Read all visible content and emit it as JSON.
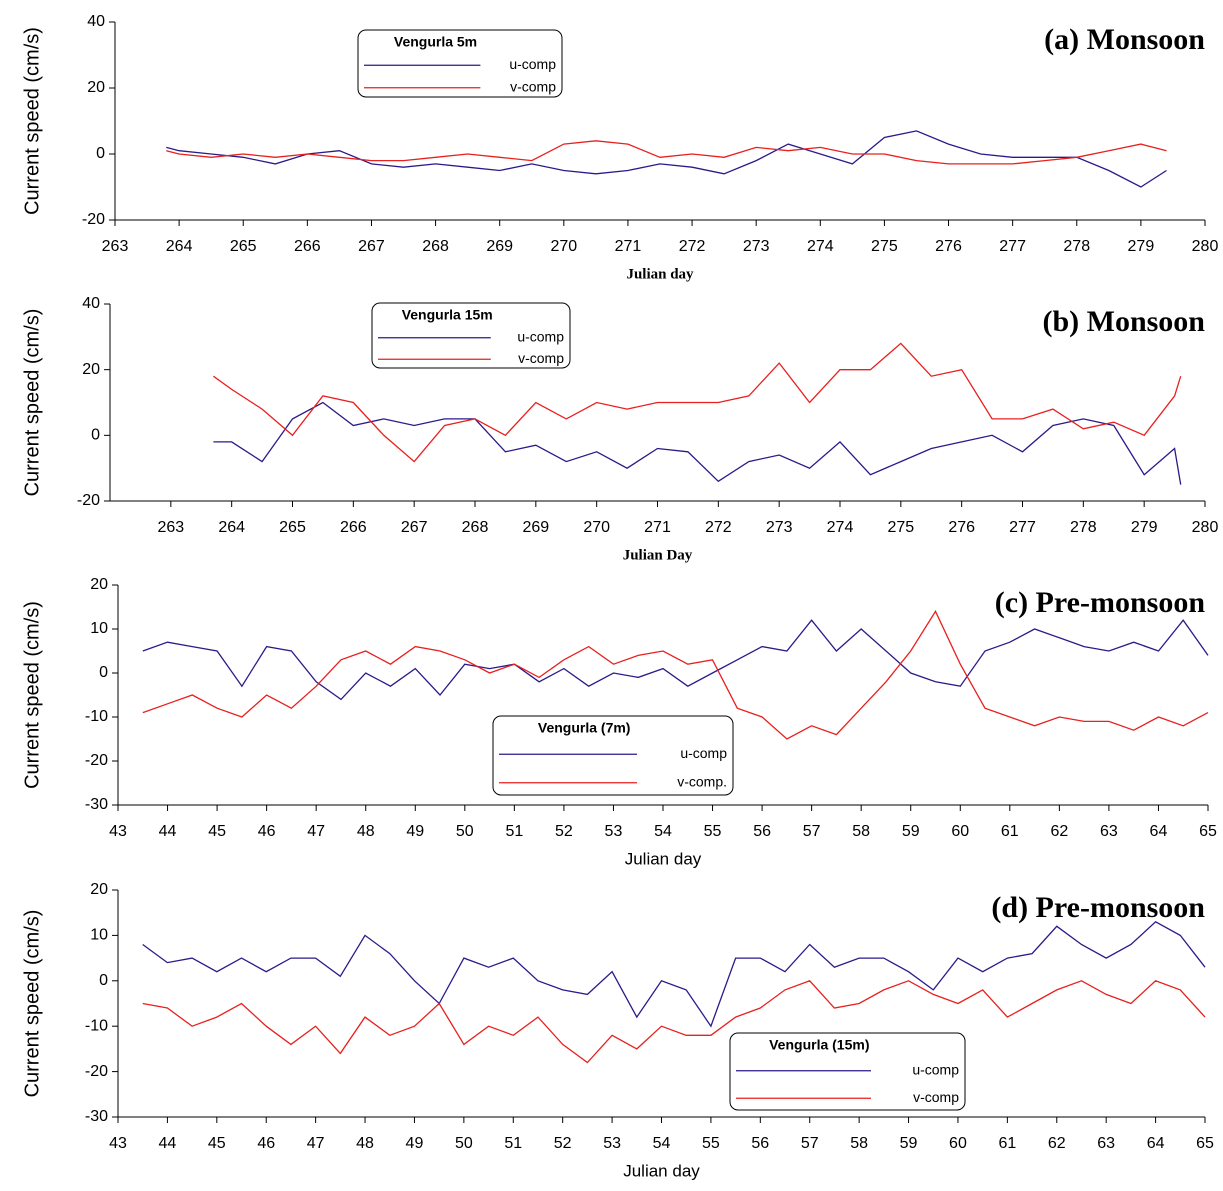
{
  "chart_data": [
    {
      "type": "line",
      "title": "(a) Monsoon",
      "xlabel": "Julian day",
      "ylabel": "Current speed (cm/s)",
      "legend_title": "Vengurla 5m",
      "xlim": [
        263,
        280
      ],
      "ylim": [
        -20,
        40
      ],
      "xticks": [
        263,
        264,
        265,
        266,
        267,
        268,
        269,
        270,
        271,
        272,
        273,
        274,
        275,
        276,
        277,
        278,
        279,
        280
      ],
      "yticks": [
        -20,
        0,
        20,
        40
      ],
      "x": [
        263.8,
        264,
        264.5,
        265,
        265.5,
        266,
        266.5,
        267,
        267.5,
        268,
        268.5,
        269,
        269.5,
        270,
        270.5,
        271,
        271.5,
        272,
        272.5,
        273,
        273.5,
        274,
        274.5,
        275,
        275.5,
        276,
        276.5,
        277,
        277.5,
        278,
        278.5,
        279,
        279.4
      ],
      "series": [
        {
          "name": "u-comp",
          "color": "#2b1a8a",
          "values": [
            2,
            1,
            0,
            -1,
            -3,
            0,
            1,
            -3,
            -4,
            -3,
            -4,
            -5,
            -3,
            -5,
            -6,
            -5,
            -3,
            -4,
            -6,
            -2,
            3,
            0,
            -3,
            5,
            7,
            3,
            0,
            -1,
            -1,
            -1,
            -5,
            -10,
            -5
          ]
        },
        {
          "name": "v-comp",
          "color": "#e8201e",
          "values": [
            1,
            0,
            -1,
            0,
            -1,
            0,
            -1,
            -2,
            -2,
            -1,
            0,
            -1,
            -2,
            3,
            4,
            3,
            -1,
            0,
            -1,
            2,
            1,
            2,
            0,
            0,
            -2,
            -3,
            -3,
            -3,
            -2,
            -1,
            1,
            3,
            1
          ]
        }
      ]
    },
    {
      "type": "line",
      "title": "(b) Monsoon",
      "xlabel": "Julian Day",
      "ylabel": "Current speed (cm/s)",
      "legend_title": "Vengurla 15m",
      "xlim": [
        262,
        280
      ],
      "ylim": [
        -20,
        40
      ],
      "xticks": [
        263,
        264,
        265,
        266,
        267,
        268,
        269,
        270,
        271,
        272,
        273,
        274,
        275,
        276,
        277,
        278,
        279,
        280
      ],
      "yticks": [
        -20,
        0,
        20,
        40
      ],
      "x": [
        263.7,
        264,
        264.5,
        265,
        265.5,
        266,
        266.5,
        267,
        267.5,
        268,
        268.5,
        269,
        269.5,
        270,
        270.5,
        271,
        271.5,
        272,
        272.5,
        273,
        273.5,
        274,
        274.5,
        275,
        275.5,
        276,
        276.5,
        277,
        277.5,
        278,
        278.5,
        279,
        279.5,
        279.6
      ],
      "series": [
        {
          "name": "u-comp",
          "color": "#2b1a8a",
          "values": [
            -2,
            -2,
            -8,
            5,
            10,
            3,
            5,
            3,
            5,
            5,
            -5,
            -3,
            -8,
            -5,
            -10,
            -4,
            -5,
            -14,
            -8,
            -6,
            -10,
            -2,
            -12,
            -8,
            -4,
            -2,
            0,
            -5,
            3,
            5,
            3,
            -12,
            -4,
            -15
          ]
        },
        {
          "name": "v-comp",
          "color": "#e8201e",
          "values": [
            18,
            14,
            8,
            0,
            12,
            10,
            0,
            -8,
            3,
            5,
            0,
            10,
            5,
            10,
            8,
            10,
            10,
            10,
            12,
            22,
            10,
            20,
            20,
            28,
            18,
            20,
            5,
            5,
            8,
            2,
            4,
            0,
            12,
            18
          ]
        }
      ]
    },
    {
      "type": "line",
      "title": "(c) Pre-monsoon",
      "xlabel": "Julian day",
      "ylabel": "Current speed (cm/s)",
      "legend_title": "Vengurla (7m)",
      "xlim": [
        43,
        65
      ],
      "ylim": [
        -30,
        20
      ],
      "xticks": [
        43,
        44,
        45,
        46,
        47,
        48,
        49,
        50,
        51,
        52,
        53,
        54,
        55,
        56,
        57,
        58,
        59,
        60,
        61,
        62,
        63,
        64,
        65
      ],
      "yticks": [
        -30,
        -20,
        -10,
        0,
        10,
        20
      ],
      "x": [
        43.5,
        44,
        44.5,
        45,
        45.5,
        46,
        46.5,
        47,
        47.5,
        48,
        48.5,
        49,
        49.5,
        50,
        50.5,
        51,
        51.5,
        52,
        52.5,
        53,
        53.5,
        54,
        54.5,
        55,
        55.5,
        56,
        56.5,
        57,
        57.5,
        58,
        58.5,
        59,
        59.5,
        60,
        60.5,
        61,
        61.5,
        62,
        62.5,
        63,
        63.5,
        64,
        64.5,
        65
      ],
      "series": [
        {
          "name": "u-comp",
          "color": "#2b1a8a",
          "values": [
            5,
            7,
            6,
            5,
            -3,
            6,
            5,
            -2,
            -6,
            0,
            -3,
            1,
            -5,
            2,
            1,
            2,
            -2,
            1,
            -3,
            0,
            -1,
            1,
            -3,
            0,
            3,
            6,
            5,
            12,
            5,
            10,
            5,
            0,
            -2,
            -3,
            5,
            7,
            10,
            8,
            6,
            5,
            7,
            5,
            12,
            4
          ]
        },
        {
          "name": "v-comp.",
          "color": "#e8201e",
          "values": [
            -9,
            -7,
            -5,
            -8,
            -10,
            -5,
            -8,
            -3,
            3,
            5,
            2,
            6,
            5,
            3,
            0,
            2,
            -1,
            3,
            6,
            2,
            4,
            5,
            2,
            3,
            -8,
            -10,
            -15,
            -12,
            -14,
            -8,
            -2,
            5,
            14,
            2,
            -8,
            -10,
            -12,
            -10,
            -11,
            -11,
            -13,
            -10,
            -12,
            -9
          ]
        }
      ]
    },
    {
      "type": "line",
      "title": "(d) Pre-monsoon",
      "xlabel": "Julian day",
      "ylabel": "Current speed (cm/s)",
      "legend_title": "Vengurla (15m)",
      "xlim": [
        43,
        65
      ],
      "ylim": [
        -30,
        20
      ],
      "xticks": [
        43,
        44,
        45,
        46,
        47,
        48,
        49,
        50,
        51,
        52,
        53,
        54,
        55,
        56,
        57,
        58,
        59,
        60,
        61,
        62,
        63,
        64,
        65
      ],
      "yticks": [
        -30,
        -20,
        -10,
        0,
        10,
        20
      ],
      "x": [
        43.5,
        44,
        44.5,
        45,
        45.5,
        46,
        46.5,
        47,
        47.5,
        48,
        48.5,
        49,
        49.5,
        50,
        50.5,
        51,
        51.5,
        52,
        52.5,
        53,
        53.5,
        54,
        54.5,
        55,
        55.5,
        56,
        56.5,
        57,
        57.5,
        58,
        58.5,
        59,
        59.5,
        60,
        60.5,
        61,
        61.5,
        62,
        62.5,
        63,
        63.5,
        64,
        64.5,
        65
      ],
      "series": [
        {
          "name": "u-comp",
          "color": "#2b1a8a",
          "values": [
            8,
            4,
            5,
            2,
            5,
            2,
            5,
            5,
            1,
            10,
            6,
            0,
            -5,
            5,
            3,
            5,
            0,
            -2,
            -3,
            2,
            -8,
            0,
            -2,
            -10,
            5,
            5,
            2,
            8,
            3,
            5,
            5,
            2,
            -2,
            5,
            2,
            5,
            6,
            12,
            8,
            5,
            8,
            13,
            10,
            3
          ]
        },
        {
          "name": "v-comp",
          "color": "#e8201e",
          "values": [
            -5,
            -6,
            -10,
            -8,
            -5,
            -10,
            -14,
            -10,
            -16,
            -8,
            -12,
            -10,
            -5,
            -14,
            -10,
            -12,
            -8,
            -14,
            -18,
            -12,
            -15,
            -10,
            -12,
            -12,
            -8,
            -6,
            -2,
            0,
            -6,
            -5,
            -2,
            0,
            -3,
            -5,
            -2,
            -8,
            -5,
            -2,
            0,
            -3,
            -5,
            0,
            -2,
            -8
          ]
        }
      ]
    }
  ]
}
